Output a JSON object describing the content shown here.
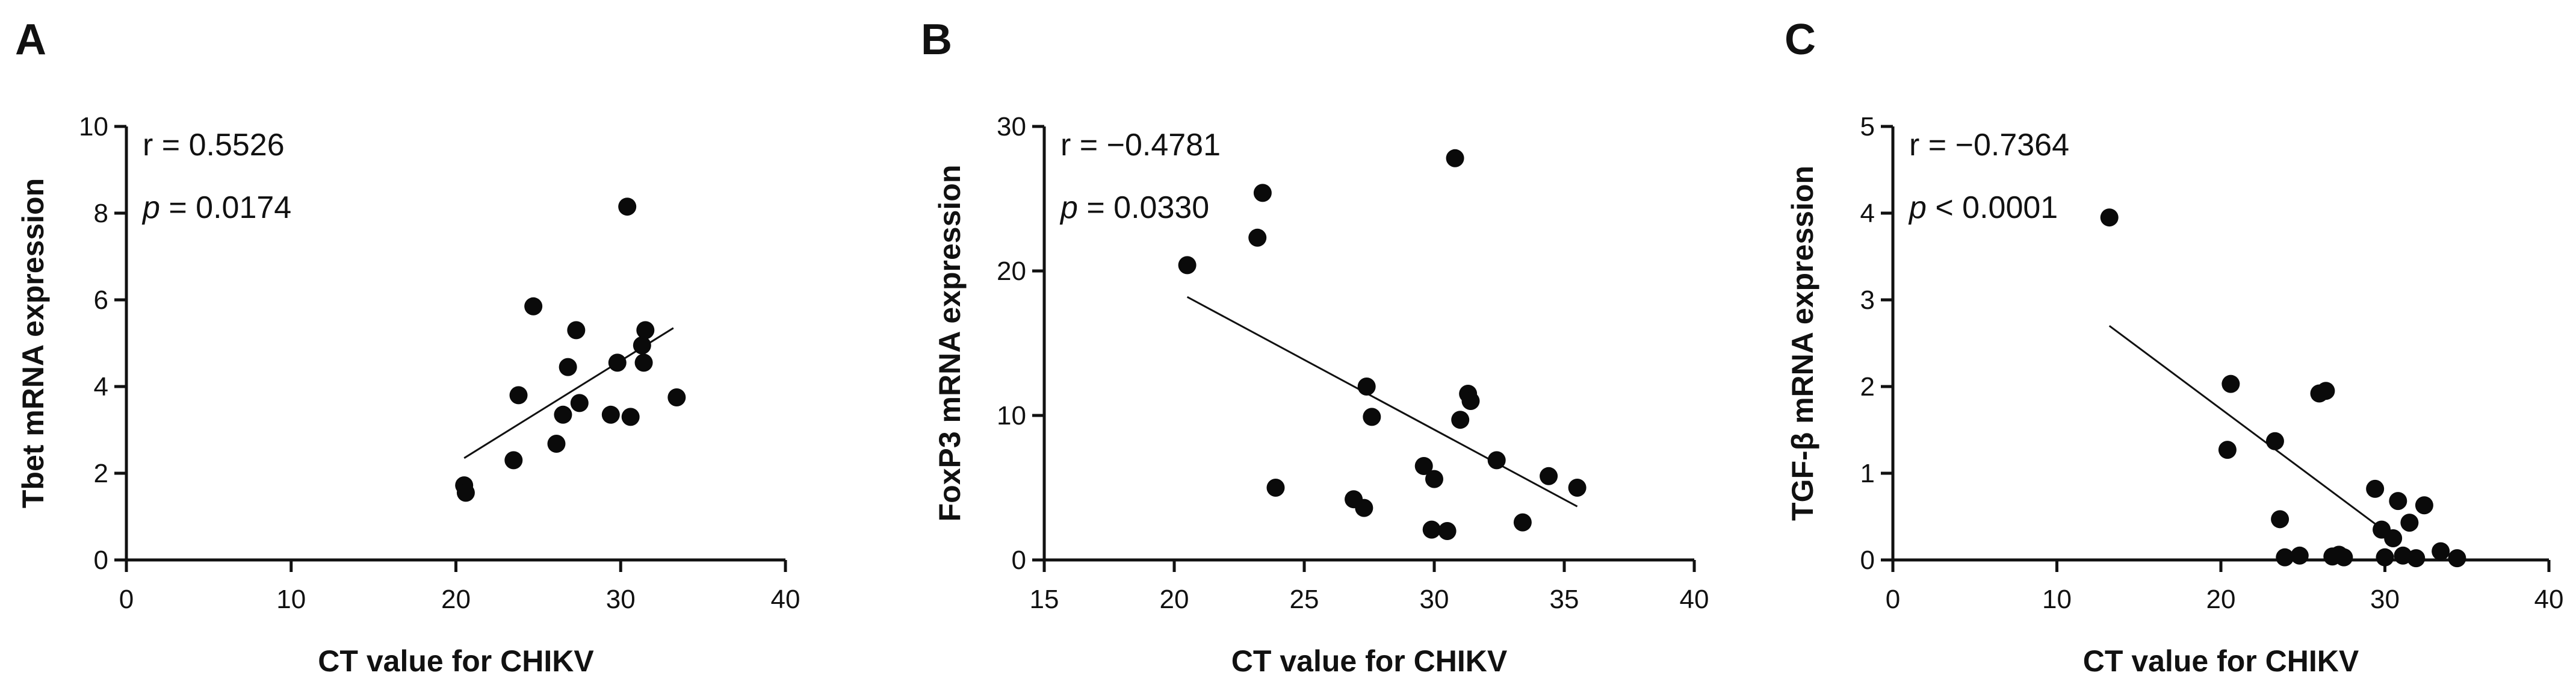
{
  "chart_data": [
    {
      "type": "scatter",
      "panel": "A",
      "xlabel": "CT value for CHIKV",
      "ylabel": "Tbet mRNA expression",
      "xlim": [
        0,
        40
      ],
      "ylim": [
        0,
        10
      ],
      "xticks": [
        0,
        10,
        20,
        30,
        40
      ],
      "yticks": [
        0,
        2,
        4,
        6,
        8,
        10
      ],
      "r_label": "r = 0.5526",
      "p_symbol": "p",
      "p_text": " = 0.0174",
      "fit": [
        [
          20.5,
          2.35
        ],
        [
          33.2,
          5.35
        ]
      ],
      "points": [
        [
          20.5,
          1.72
        ],
        [
          20.6,
          1.55
        ],
        [
          23.5,
          2.3
        ],
        [
          23.8,
          3.8
        ],
        [
          24.7,
          5.85
        ],
        [
          26.1,
          2.68
        ],
        [
          26.5,
          3.35
        ],
        [
          26.8,
          4.45
        ],
        [
          27.3,
          5.3
        ],
        [
          27.5,
          3.62
        ],
        [
          29.4,
          3.35
        ],
        [
          29.8,
          4.55
        ],
        [
          30.4,
          8.15
        ],
        [
          30.6,
          3.3
        ],
        [
          31.3,
          4.95
        ],
        [
          31.4,
          4.55
        ],
        [
          31.5,
          5.3
        ],
        [
          33.4,
          3.75
        ]
      ]
    },
    {
      "type": "scatter",
      "panel": "B",
      "xlabel": "CT value for CHIKV",
      "ylabel": "FoxP3 mRNA expression",
      "xlim": [
        15,
        40
      ],
      "ylim": [
        0,
        30
      ],
      "xticks": [
        15,
        20,
        25,
        30,
        35,
        40
      ],
      "yticks": [
        0,
        10,
        20,
        30
      ],
      "r_label": "r = −0.4781",
      "p_symbol": "p",
      "p_text": " = 0.0330",
      "fit": [
        [
          20.5,
          18.2
        ],
        [
          35.5,
          3.7
        ]
      ],
      "points": [
        [
          20.5,
          20.4
        ],
        [
          23.2,
          22.3
        ],
        [
          23.4,
          25.4
        ],
        [
          23.9,
          5.0
        ],
        [
          26.9,
          4.2
        ],
        [
          27.3,
          3.6
        ],
        [
          27.4,
          12.0
        ],
        [
          27.6,
          9.9
        ],
        [
          29.6,
          6.5
        ],
        [
          29.9,
          2.1
        ],
        [
          30.0,
          5.6
        ],
        [
          30.5,
          2.0
        ],
        [
          30.8,
          27.8
        ],
        [
          31.0,
          9.7
        ],
        [
          31.3,
          11.5
        ],
        [
          31.4,
          11.0
        ],
        [
          32.4,
          6.9
        ],
        [
          33.4,
          2.6
        ],
        [
          34.4,
          5.8
        ],
        [
          35.5,
          5.0
        ]
      ]
    },
    {
      "type": "scatter",
      "panel": "C",
      "xlabel": "CT value for CHIKV",
      "ylabel": "TGF-β mRNA expression",
      "xlim": [
        0,
        40
      ],
      "ylim": [
        0,
        5
      ],
      "xticks": [
        0,
        10,
        20,
        30,
        40
      ],
      "yticks": [
        0,
        1,
        2,
        3,
        4,
        5
      ],
      "r_label": "r = −0.7364",
      "p_symbol": "p",
      "p_text": " < 0.0001",
      "fit": [
        [
          13.2,
          2.7
        ],
        [
          30.8,
          0.22
        ]
      ],
      "points": [
        [
          13.2,
          3.95
        ],
        [
          20.4,
          1.27
        ],
        [
          20.6,
          2.03
        ],
        [
          23.3,
          1.37
        ],
        [
          23.6,
          0.47
        ],
        [
          23.9,
          0.03
        ],
        [
          24.8,
          0.05
        ],
        [
          26.0,
          1.92
        ],
        [
          26.4,
          1.95
        ],
        [
          26.8,
          0.04
        ],
        [
          27.2,
          0.06
        ],
        [
          27.5,
          0.03
        ],
        [
          29.4,
          0.82
        ],
        [
          29.8,
          0.35
        ],
        [
          30.0,
          0.03
        ],
        [
          30.5,
          0.25
        ],
        [
          30.8,
          0.68
        ],
        [
          31.1,
          0.05
        ],
        [
          31.5,
          0.43
        ],
        [
          31.9,
          0.02
        ],
        [
          32.4,
          0.63
        ],
        [
          33.4,
          0.1
        ],
        [
          34.4,
          0.02
        ]
      ]
    }
  ]
}
